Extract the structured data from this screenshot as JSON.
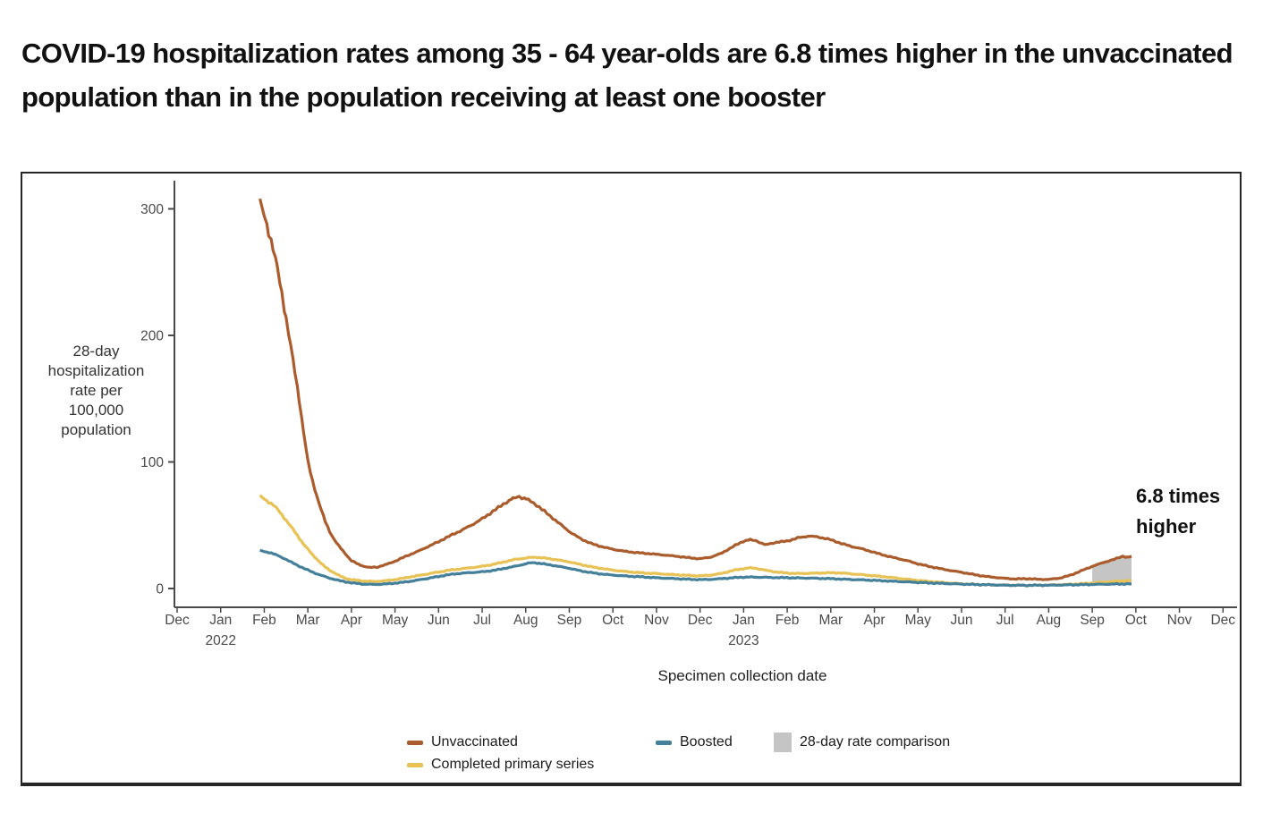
{
  "chart_data": {
    "type": "line",
    "title": "COVID-19 hospitalization rates among 35 - 64 year-olds are 6.8 times higher in the unvaccinated population than in the population receiving at least one booster",
    "xlabel": "Specimen collection date",
    "ylabel": "28-day hospitalization rate per 100,000 population",
    "ylabel_display": "28-day\nhospitalization\nrate per\n100,000\npopulation",
    "annotation": {
      "text": "6.8 times higher",
      "display": "6.8 times\nhigher"
    },
    "x_unit": "months, Dec 2021 through Dec 2023",
    "x_range": [
      0,
      24
    ],
    "ylim": [
      0,
      310
    ],
    "grid": false,
    "yticks": [
      0,
      100,
      200,
      300
    ],
    "x_tick_labels": [
      "Dec",
      "Jan",
      "Feb",
      "Mar",
      "Apr",
      "May",
      "Jun",
      "Jul",
      "Aug",
      "Sep",
      "Oct",
      "Nov",
      "Dec",
      "Jan",
      "Feb",
      "Mar",
      "Apr",
      "May",
      "Jun",
      "Jul",
      "Aug",
      "Sep",
      "Oct",
      "Nov",
      "Dec"
    ],
    "year_labels": [
      {
        "text": "2022",
        "month_index": 1
      },
      {
        "text": "2023",
        "month_index": 13
      }
    ],
    "legend_position": "bottom",
    "legend": [
      {
        "label": "Unvaccinated",
        "swatch": "line",
        "color": "#ab5c2d"
      },
      {
        "label": "Completed primary series",
        "swatch": "line",
        "color": "#e8c254"
      },
      {
        "label": "Boosted",
        "swatch": "line",
        "color": "#45809b"
      },
      {
        "label": "28-day rate comparison",
        "swatch": "rect",
        "color": "#c5c5c5"
      }
    ],
    "series": [
      {
        "name": "Unvaccinated",
        "color": "#ab5c2d",
        "points": [
          [
            1.9,
            305
          ],
          [
            2.0,
            296
          ],
          [
            2.1,
            283
          ],
          [
            2.2,
            268
          ],
          [
            2.3,
            252
          ],
          [
            2.4,
            234
          ],
          [
            2.5,
            214
          ],
          [
            2.6,
            193
          ],
          [
            2.7,
            172
          ],
          [
            2.8,
            150
          ],
          [
            2.9,
            124
          ],
          [
            3.0,
            100
          ],
          [
            3.1,
            86
          ],
          [
            3.2,
            74
          ],
          [
            3.3,
            63
          ],
          [
            3.4,
            53
          ],
          [
            3.5,
            45
          ],
          [
            3.6,
            39
          ],
          [
            3.7,
            34
          ],
          [
            3.8,
            30
          ],
          [
            3.9,
            26
          ],
          [
            4.0,
            22
          ],
          [
            4.2,
            18.5
          ],
          [
            4.4,
            16.5
          ],
          [
            4.6,
            17
          ],
          [
            4.8,
            19
          ],
          [
            5.0,
            21.5
          ],
          [
            5.25,
            25.5
          ],
          [
            5.5,
            29
          ],
          [
            5.75,
            33
          ],
          [
            6.0,
            37
          ],
          [
            6.25,
            41.5
          ],
          [
            6.5,
            45.5
          ],
          [
            6.75,
            50
          ],
          [
            7.0,
            55
          ],
          [
            7.25,
            61
          ],
          [
            7.5,
            67
          ],
          [
            7.7,
            71
          ],
          [
            7.85,
            72.5
          ],
          [
            8.0,
            71
          ],
          [
            8.25,
            66
          ],
          [
            8.5,
            59
          ],
          [
            8.75,
            52
          ],
          [
            9.0,
            45
          ],
          [
            9.25,
            39.5
          ],
          [
            9.5,
            35.5
          ],
          [
            9.75,
            33
          ],
          [
            10.0,
            31
          ],
          [
            10.25,
            29.5
          ],
          [
            10.5,
            28.5
          ],
          [
            10.75,
            27.8
          ],
          [
            11.0,
            27
          ],
          [
            11.25,
            26.2
          ],
          [
            11.5,
            25.3
          ],
          [
            11.75,
            24.3
          ],
          [
            12.0,
            23.5
          ],
          [
            12.25,
            24.8
          ],
          [
            12.5,
            28
          ],
          [
            12.75,
            33
          ],
          [
            13.0,
            37.5
          ],
          [
            13.15,
            38.5
          ],
          [
            13.3,
            37.5
          ],
          [
            13.5,
            34.5
          ],
          [
            13.75,
            36.5
          ],
          [
            14.0,
            37.5
          ],
          [
            14.25,
            40
          ],
          [
            14.5,
            41.5
          ],
          [
            14.75,
            40.5
          ],
          [
            15.0,
            38.5
          ],
          [
            15.25,
            35.5
          ],
          [
            15.5,
            33
          ],
          [
            15.75,
            31
          ],
          [
            16.0,
            28.5
          ],
          [
            16.25,
            26
          ],
          [
            16.5,
            24
          ],
          [
            16.75,
            22
          ],
          [
            17.0,
            19.5
          ],
          [
            17.25,
            17.5
          ],
          [
            17.5,
            15.8
          ],
          [
            17.75,
            14.2
          ],
          [
            18.0,
            12.8
          ],
          [
            18.25,
            11.2
          ],
          [
            18.5,
            9.8
          ],
          [
            18.75,
            8.8
          ],
          [
            19.0,
            8
          ],
          [
            19.25,
            7.5
          ],
          [
            19.5,
            7.8
          ],
          [
            19.75,
            7.3
          ],
          [
            20.0,
            7.2
          ],
          [
            20.25,
            8.2
          ],
          [
            20.5,
            10.5
          ],
          [
            20.75,
            14
          ],
          [
            21.0,
            17.5
          ],
          [
            21.25,
            20.5
          ],
          [
            21.5,
            23
          ],
          [
            21.7,
            25.5
          ],
          [
            21.8,
            24.5
          ],
          [
            21.9,
            25.5
          ]
        ]
      },
      {
        "name": "Completed primary series",
        "color": "#e8c254",
        "points": [
          [
            1.9,
            73
          ],
          [
            2.0,
            71
          ],
          [
            2.1,
            68.5
          ],
          [
            2.2,
            66
          ],
          [
            2.3,
            62.5
          ],
          [
            2.4,
            58.5
          ],
          [
            2.5,
            54
          ],
          [
            2.6,
            49.5
          ],
          [
            2.7,
            45
          ],
          [
            2.8,
            40
          ],
          [
            2.9,
            35
          ],
          [
            3.0,
            31
          ],
          [
            3.1,
            27
          ],
          [
            3.2,
            23.5
          ],
          [
            3.3,
            20
          ],
          [
            3.4,
            17
          ],
          [
            3.5,
            14.5
          ],
          [
            3.6,
            12.5
          ],
          [
            3.7,
            10.5
          ],
          [
            3.8,
            9
          ],
          [
            3.9,
            7.8
          ],
          [
            4.0,
            7
          ],
          [
            4.25,
            6
          ],
          [
            4.5,
            5.5
          ],
          [
            4.75,
            6
          ],
          [
            5.0,
            7
          ],
          [
            5.25,
            8.5
          ],
          [
            5.5,
            10
          ],
          [
            5.75,
            11.5
          ],
          [
            6.0,
            13
          ],
          [
            6.25,
            14.5
          ],
          [
            6.5,
            15.5
          ],
          [
            6.75,
            16.5
          ],
          [
            7.0,
            17.5
          ],
          [
            7.25,
            19
          ],
          [
            7.5,
            21
          ],
          [
            7.75,
            23
          ],
          [
            8.0,
            24
          ],
          [
            8.15,
            24.8
          ],
          [
            8.3,
            24.5
          ],
          [
            8.5,
            23.8
          ],
          [
            8.75,
            22.5
          ],
          [
            9.0,
            21
          ],
          [
            9.25,
            19
          ],
          [
            9.5,
            17.2
          ],
          [
            9.75,
            15.8
          ],
          [
            10.0,
            14.5
          ],
          [
            10.25,
            13.5
          ],
          [
            10.5,
            12.8
          ],
          [
            10.75,
            12.2
          ],
          [
            11.0,
            11.8
          ],
          [
            11.25,
            11.2
          ],
          [
            11.5,
            10.8
          ],
          [
            11.75,
            10.3
          ],
          [
            12.0,
            10
          ],
          [
            12.25,
            10.6
          ],
          [
            12.5,
            12
          ],
          [
            12.75,
            14.2
          ],
          [
            13.0,
            15.8
          ],
          [
            13.15,
            16.3
          ],
          [
            13.3,
            15.8
          ],
          [
            13.5,
            14.5
          ],
          [
            13.75,
            13
          ],
          [
            14.0,
            12.2
          ],
          [
            14.25,
            11.8
          ],
          [
            14.5,
            12
          ],
          [
            14.75,
            12.2
          ],
          [
            15.0,
            12.5
          ],
          [
            15.25,
            12.2
          ],
          [
            15.5,
            11.5
          ],
          [
            15.75,
            10.8
          ],
          [
            16.0,
            10
          ],
          [
            16.25,
            9.2
          ],
          [
            16.5,
            8.3
          ],
          [
            16.75,
            7.3
          ],
          [
            17.0,
            6.4
          ],
          [
            17.25,
            5.6
          ],
          [
            17.5,
            4.9
          ],
          [
            17.75,
            4.3
          ],
          [
            18.0,
            3.7
          ],
          [
            18.25,
            3.3
          ],
          [
            18.5,
            3
          ],
          [
            18.75,
            2.8
          ],
          [
            19.0,
            2.7
          ],
          [
            19.5,
            2.5
          ],
          [
            20.0,
            2.7
          ],
          [
            20.5,
            3.3
          ],
          [
            21.0,
            4.3
          ],
          [
            21.5,
            5.6
          ],
          [
            21.9,
            6.4
          ]
        ]
      },
      {
        "name": "Boosted",
        "color": "#45809b",
        "points": [
          [
            1.9,
            30
          ],
          [
            2.0,
            29.3
          ],
          [
            2.1,
            28.6
          ],
          [
            2.25,
            27
          ],
          [
            2.5,
            23
          ],
          [
            2.75,
            18.5
          ],
          [
            3.0,
            14.5
          ],
          [
            3.25,
            11
          ],
          [
            3.5,
            8.2
          ],
          [
            3.75,
            6
          ],
          [
            4.0,
            4.5
          ],
          [
            4.25,
            3.6
          ],
          [
            4.5,
            3.2
          ],
          [
            4.75,
            3.5
          ],
          [
            5.0,
            4.2
          ],
          [
            5.25,
            5.2
          ],
          [
            5.5,
            6.5
          ],
          [
            5.75,
            8
          ],
          [
            6.0,
            9.5
          ],
          [
            6.25,
            11
          ],
          [
            6.5,
            12
          ],
          [
            6.75,
            12.6
          ],
          [
            7.0,
            13.2
          ],
          [
            7.25,
            14.2
          ],
          [
            7.5,
            15.8
          ],
          [
            7.75,
            17.5
          ],
          [
            8.0,
            19.5
          ],
          [
            8.15,
            20.5
          ],
          [
            8.3,
            20
          ],
          [
            8.5,
            19
          ],
          [
            8.75,
            17.5
          ],
          [
            9.0,
            16
          ],
          [
            9.25,
            14
          ],
          [
            9.5,
            12.5
          ],
          [
            9.75,
            11.4
          ],
          [
            10.0,
            10.6
          ],
          [
            10.25,
            10
          ],
          [
            10.5,
            9.5
          ],
          [
            10.75,
            9
          ],
          [
            11.0,
            8.5
          ],
          [
            11.25,
            8.1
          ],
          [
            11.5,
            7.7
          ],
          [
            11.75,
            7.3
          ],
          [
            12.0,
            7
          ],
          [
            12.25,
            7.2
          ],
          [
            12.5,
            7.8
          ],
          [
            12.75,
            8.5
          ],
          [
            13.0,
            9
          ],
          [
            13.25,
            9
          ],
          [
            13.5,
            8.8
          ],
          [
            13.75,
            8.6
          ],
          [
            14.0,
            8.5
          ],
          [
            14.25,
            8.3
          ],
          [
            14.5,
            8.2
          ],
          [
            14.75,
            8
          ],
          [
            15.0,
            7.8
          ],
          [
            15.25,
            7.4
          ],
          [
            15.5,
            7.1
          ],
          [
            15.75,
            6.8
          ],
          [
            16.0,
            6.4
          ],
          [
            16.25,
            6
          ],
          [
            16.5,
            5.6
          ],
          [
            16.75,
            5.2
          ],
          [
            17.0,
            4.8
          ],
          [
            17.25,
            4.4
          ],
          [
            17.5,
            4.1
          ],
          [
            17.75,
            3.8
          ],
          [
            18.0,
            3.5
          ],
          [
            18.25,
            3.2
          ],
          [
            18.5,
            3
          ],
          [
            18.75,
            2.8
          ],
          [
            19.0,
            2.6
          ],
          [
            19.5,
            2.5
          ],
          [
            20.0,
            2.6
          ],
          [
            20.5,
            2.9
          ],
          [
            21.0,
            3.2
          ],
          [
            21.5,
            3.5
          ],
          [
            21.9,
            3.7
          ]
        ]
      }
    ],
    "comparison_region": {
      "label": "28-day rate comparison",
      "color": "#c5c5c5",
      "x_start": 21.0,
      "x_end": 21.9,
      "between": [
        "Unvaccinated",
        "Boosted"
      ]
    },
    "axis_color": "#4a4a4a",
    "tick_label_color": "#4a4a4a"
  }
}
